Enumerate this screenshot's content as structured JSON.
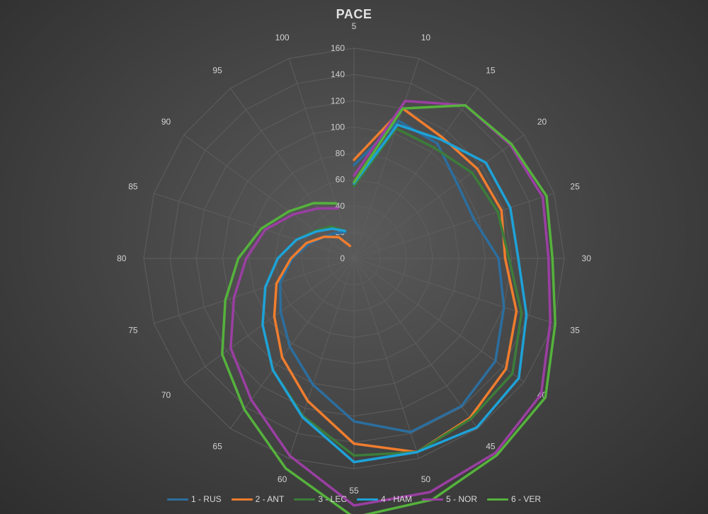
{
  "chart_data": {
    "type": "radar",
    "title": "PACE",
    "categories": [
      "5",
      "10",
      "15",
      "20",
      "25",
      "30",
      "35",
      "40",
      "45",
      "50",
      "55",
      "60",
      "65",
      "70",
      "75",
      "80",
      "85",
      "90",
      "95",
      "100"
    ],
    "radial_ticks": [
      "0",
      "20",
      "40",
      "60",
      "80",
      "100",
      "120",
      "140",
      "160"
    ],
    "rlim": [
      0,
      160
    ],
    "grid": true,
    "legend_position": "bottom",
    "series": [
      {
        "name": "1 - RUS",
        "color": "#2c6e9e",
        "values": [
          71,
          110,
          108,
          97,
          96,
          110,
          120,
          133,
          139,
          139,
          124,
          101,
          83,
          69,
          59,
          47,
          36,
          28,
          24,
          21
        ]
      },
      {
        "name": "2 - ANT",
        "color": "#f07d2e",
        "values": [
          75,
          120,
          114,
          116,
          118,
          115,
          130,
          143,
          150,
          155,
          141,
          114,
          93,
          75,
          62,
          48,
          38,
          28,
          20,
          10
        ]
      },
      {
        "name": "3 - LEC",
        "color": "#3c7c3a",
        "values": [
          55,
          104,
          104,
          111,
          115,
          118,
          134,
          149,
          151,
          155,
          150,
          126,
          105,
          86,
          71,
          58,
          46,
          36,
          30,
          22
        ]
      },
      {
        "name": "4 - HAM",
        "color": "#1ea2d8",
        "values": [
          57,
          107,
          112,
          124,
          125,
          125,
          138,
          155,
          159,
          155,
          155,
          127,
          105,
          86,
          71,
          58,
          46,
          35,
          28,
          22
        ]
      },
      {
        "name": "5 - NOR",
        "color": "#9a3fa2",
        "values": [
          63,
          126,
          144,
          147,
          151,
          148,
          157,
          176,
          183,
          187,
          188,
          158,
          133,
          116,
          96,
          82,
          71,
          57,
          47,
          40
        ]
      },
      {
        "name": "6 - VER",
        "color": "#55b23c",
        "values": [
          58,
          120,
          144,
          148,
          154,
          151,
          161,
          180,
          185,
          193,
          197,
          168,
          142,
          124,
          103,
          88,
          74,
          61,
          52,
          44
        ]
      }
    ]
  }
}
